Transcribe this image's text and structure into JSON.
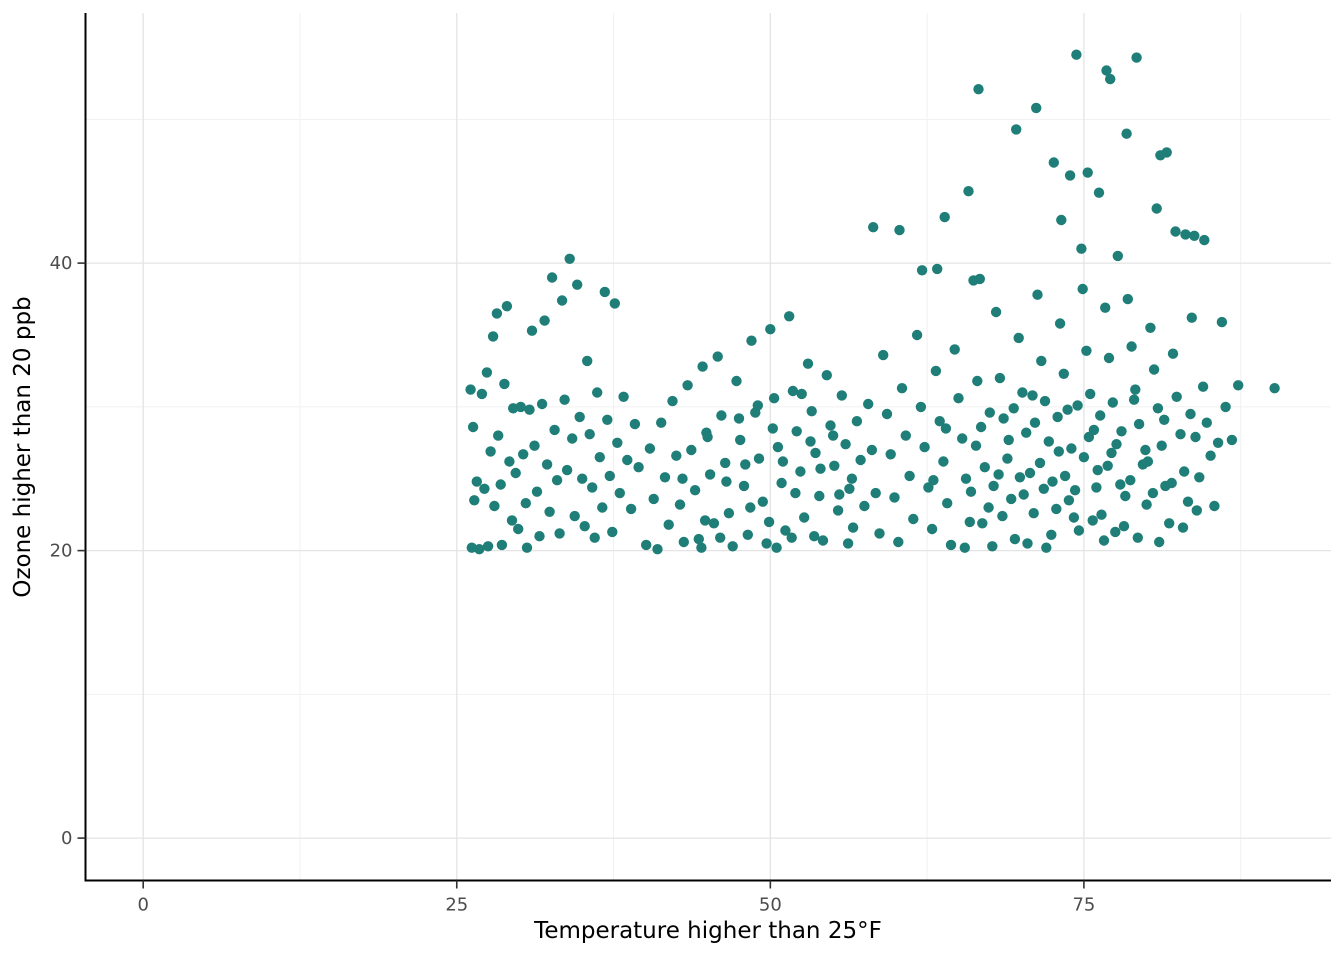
{
  "chart_data": {
    "type": "scatter",
    "title": "",
    "xlabel": "Temperature higher than 25°F",
    "ylabel": "Ozone higher than 20 ppb",
    "xlim": [
      -4.6,
      94.7
    ],
    "ylim": [
      -2.95,
      57.4
    ],
    "x_major_ticks": [
      0,
      25,
      50,
      75
    ],
    "y_major_ticks": [
      0,
      20,
      40
    ],
    "x_minor_gridlines": [
      12.5,
      37.5,
      62.5,
      87.5
    ],
    "y_minor_gridlines": [
      10,
      30,
      50
    ],
    "grid": true,
    "legend_position": "none",
    "point_color": "#1f7e78",
    "major_grid_color": "#e4e4e4",
    "minor_grid_color": "#f1f1f1",
    "axis_line_color": "#000000",
    "points": [
      [
        26.1,
        31.2
      ],
      [
        26.3,
        28.6
      ],
      [
        26.4,
        23.5
      ],
      [
        26.2,
        20.2
      ],
      [
        26.6,
        24.8
      ],
      [
        26.8,
        20.1
      ],
      [
        27.0,
        30.9
      ],
      [
        27.2,
        24.3
      ],
      [
        27.4,
        32.4
      ],
      [
        27.5,
        20.3
      ],
      [
        27.7,
        26.9
      ],
      [
        27.9,
        34.9
      ],
      [
        28.0,
        23.1
      ],
      [
        28.2,
        36.5
      ],
      [
        28.3,
        28.0
      ],
      [
        28.5,
        24.6
      ],
      [
        28.6,
        20.4
      ],
      [
        28.8,
        31.6
      ],
      [
        29.0,
        37.0
      ],
      [
        29.2,
        26.2
      ],
      [
        29.4,
        22.1
      ],
      [
        29.5,
        29.9
      ],
      [
        29.7,
        25.4
      ],
      [
        29.9,
        21.5
      ],
      [
        30.1,
        30.0
      ],
      [
        30.3,
        26.7
      ],
      [
        30.5,
        23.3
      ],
      [
        30.6,
        20.2
      ],
      [
        30.8,
        29.8
      ],
      [
        31.0,
        35.3
      ],
      [
        31.2,
        27.3
      ],
      [
        31.4,
        24.1
      ],
      [
        31.6,
        21.0
      ],
      [
        31.8,
        30.2
      ],
      [
        32.0,
        36.0
      ],
      [
        32.2,
        26.0
      ],
      [
        32.4,
        22.7
      ],
      [
        32.6,
        39.0
      ],
      [
        32.8,
        28.4
      ],
      [
        33.0,
        24.9
      ],
      [
        33.2,
        21.2
      ],
      [
        33.4,
        37.4
      ],
      [
        33.6,
        30.5
      ],
      [
        33.8,
        25.6
      ],
      [
        34.0,
        40.3
      ],
      [
        34.2,
        27.8
      ],
      [
        34.4,
        22.4
      ],
      [
        34.6,
        38.5
      ],
      [
        34.8,
        29.3
      ],
      [
        35.0,
        25.0
      ],
      [
        35.2,
        21.7
      ],
      [
        35.4,
        33.2
      ],
      [
        35.6,
        28.1
      ],
      [
        35.8,
        24.4
      ],
      [
        36.0,
        20.9
      ],
      [
        36.2,
        31.0
      ],
      [
        36.4,
        26.5
      ],
      [
        36.6,
        23.0
      ],
      [
        36.8,
        38.0
      ],
      [
        37.0,
        29.1
      ],
      [
        37.2,
        25.2
      ],
      [
        37.4,
        21.3
      ],
      [
        37.6,
        37.2
      ],
      [
        37.8,
        27.5
      ],
      [
        38.0,
        24.0
      ],
      [
        38.3,
        30.7
      ],
      [
        38.6,
        26.3
      ],
      [
        38.9,
        22.9
      ],
      [
        39.2,
        28.8
      ],
      [
        39.5,
        25.8
      ],
      [
        40.1,
        20.4
      ],
      [
        40.4,
        27.1
      ],
      [
        40.7,
        23.6
      ],
      [
        41.0,
        20.1
      ],
      [
        41.3,
        28.9
      ],
      [
        41.6,
        25.1
      ],
      [
        41.9,
        21.8
      ],
      [
        42.2,
        30.4
      ],
      [
        42.5,
        26.6
      ],
      [
        42.8,
        23.2
      ],
      [
        43.1,
        20.6
      ],
      [
        43.4,
        31.5
      ],
      [
        43.7,
        27.0
      ],
      [
        44.0,
        24.2
      ],
      [
        44.3,
        20.8
      ],
      [
        44.6,
        32.8
      ],
      [
        44.9,
        28.2
      ],
      [
        45.2,
        25.3
      ],
      [
        45.5,
        21.9
      ],
      [
        45.8,
        33.5
      ],
      [
        46.1,
        29.4
      ],
      [
        46.4,
        26.1
      ],
      [
        46.7,
        22.6
      ],
      [
        47.0,
        20.3
      ],
      [
        47.3,
        31.8
      ],
      [
        47.6,
        27.7
      ],
      [
        47.9,
        24.5
      ],
      [
        48.2,
        21.1
      ],
      [
        48.5,
        34.6
      ],
      [
        48.8,
        29.6
      ],
      [
        49.1,
        26.4
      ],
      [
        49.4,
        23.4
      ],
      [
        49.7,
        20.5
      ],
      [
        50.0,
        35.4
      ],
      [
        50.3,
        30.6
      ],
      [
        50.6,
        27.2
      ],
      [
        50.9,
        24.7
      ],
      [
        51.2,
        21.4
      ],
      [
        51.5,
        36.3
      ],
      [
        51.8,
        31.1
      ],
      [
        52.1,
        28.3
      ],
      [
        52.4,
        25.5
      ],
      [
        52.7,
        22.3
      ],
      [
        53.0,
        33.0
      ],
      [
        53.3,
        29.7
      ],
      [
        53.6,
        26.8
      ],
      [
        53.9,
        23.8
      ],
      [
        54.2,
        20.7
      ],
      [
        54.5,
        32.2
      ],
      [
        54.8,
        28.7
      ],
      [
        55.1,
        25.9
      ],
      [
        55.4,
        22.8
      ],
      [
        55.7,
        30.8
      ],
      [
        56.0,
        27.4
      ],
      [
        56.3,
        24.3
      ],
      [
        56.6,
        21.6
      ],
      [
        56.9,
        29.0
      ],
      [
        44.5,
        20.2
      ],
      [
        46.0,
        20.9
      ],
      [
        48.0,
        26.0
      ],
      [
        49.0,
        30.1
      ],
      [
        50.5,
        20.2
      ],
      [
        52.0,
        24.0
      ],
      [
        53.5,
        21.0
      ],
      [
        55.0,
        28.0
      ],
      [
        56.5,
        25.0
      ],
      [
        45.0,
        27.9
      ],
      [
        47.5,
        29.2
      ],
      [
        49.9,
        22.0
      ],
      [
        51.0,
        26.2
      ],
      [
        52.5,
        30.9
      ],
      [
        54.0,
        25.7
      ],
      [
        55.5,
        23.9
      ],
      [
        56.2,
        20.5
      ],
      [
        43.0,
        25.0
      ],
      [
        44.8,
        22.1
      ],
      [
        46.5,
        24.8
      ],
      [
        48.4,
        23.0
      ],
      [
        50.2,
        28.5
      ],
      [
        51.7,
        20.9
      ],
      [
        53.2,
        27.6
      ],
      [
        57.2,
        26.3
      ],
      [
        57.5,
        23.1
      ],
      [
        57.8,
        30.2
      ],
      [
        58.1,
        27.0
      ],
      [
        58.4,
        24.0
      ],
      [
        58.7,
        21.2
      ],
      [
        59.0,
        33.6
      ],
      [
        59.3,
        29.5
      ],
      [
        59.6,
        26.7
      ],
      [
        59.9,
        23.7
      ],
      [
        60.2,
        20.6
      ],
      [
        60.5,
        31.3
      ],
      [
        60.8,
        28.0
      ],
      [
        61.1,
        25.2
      ],
      [
        61.4,
        22.2
      ],
      [
        61.7,
        35.0
      ],
      [
        62.0,
        30.0
      ],
      [
        62.3,
        27.2
      ],
      [
        62.6,
        24.4
      ],
      [
        62.9,
        21.5
      ],
      [
        63.2,
        32.5
      ],
      [
        63.5,
        29.0
      ],
      [
        63.8,
        26.2
      ],
      [
        64.1,
        23.3
      ],
      [
        64.4,
        20.4
      ],
      [
        64.7,
        34.0
      ],
      [
        65.0,
        30.6
      ],
      [
        65.3,
        27.8
      ],
      [
        65.6,
        25.0
      ],
      [
        65.9,
        22.0
      ],
      [
        66.2,
        38.8
      ],
      [
        66.5,
        31.8
      ],
      [
        66.8,
        28.6
      ],
      [
        67.1,
        25.8
      ],
      [
        67.4,
        23.0
      ],
      [
        67.7,
        20.3
      ],
      [
        68.0,
        36.6
      ],
      [
        68.3,
        32.0
      ],
      [
        68.6,
        29.2
      ],
      [
        68.9,
        26.4
      ],
      [
        69.2,
        23.6
      ],
      [
        69.5,
        20.8
      ],
      [
        69.8,
        34.8
      ],
      [
        70.1,
        31.0
      ],
      [
        70.4,
        28.2
      ],
      [
        70.7,
        25.4
      ],
      [
        71.0,
        22.6
      ],
      [
        71.3,
        37.8
      ],
      [
        71.6,
        33.2
      ],
      [
        71.9,
        30.4
      ],
      [
        72.2,
        27.6
      ],
      [
        72.5,
        24.8
      ],
      [
        72.8,
        22.9
      ],
      [
        73.1,
        35.8
      ],
      [
        73.4,
        32.3
      ],
      [
        73.7,
        29.8
      ],
      [
        74.0,
        27.1
      ],
      [
        74.3,
        24.2
      ],
      [
        74.6,
        21.4
      ],
      [
        74.9,
        38.2
      ],
      [
        75.2,
        33.9
      ],
      [
        75.5,
        30.9
      ],
      [
        75.8,
        28.4
      ],
      [
        76.1,
        25.6
      ],
      [
        76.4,
        22.5
      ],
      [
        76.7,
        36.9
      ],
      [
        77.0,
        33.4
      ],
      [
        77.3,
        30.3
      ],
      [
        77.6,
        27.4
      ],
      [
        77.9,
        24.6
      ],
      [
        78.2,
        21.7
      ],
      [
        78.5,
        37.5
      ],
      [
        78.8,
        34.2
      ],
      [
        79.1,
        31.2
      ],
      [
        79.4,
        28.8
      ],
      [
        79.7,
        26.0
      ],
      [
        80.0,
        23.2
      ],
      [
        80.3,
        35.5
      ],
      [
        80.6,
        32.6
      ],
      [
        80.9,
        29.9
      ],
      [
        81.2,
        27.3
      ],
      [
        81.5,
        24.5
      ],
      [
        81.8,
        21.9
      ],
      [
        82.1,
        33.7
      ],
      [
        82.4,
        30.7
      ],
      [
        82.7,
        28.1
      ],
      [
        83.0,
        25.5
      ],
      [
        83.3,
        23.4
      ],
      [
        83.6,
        36.2
      ],
      [
        83.9,
        27.9
      ],
      [
        84.2,
        25.1
      ],
      [
        84.5,
        31.4
      ],
      [
        84.8,
        28.9
      ],
      [
        85.1,
        26.6
      ],
      [
        85.4,
        23.1
      ],
      [
        85.7,
        27.5
      ],
      [
        63.0,
        24.9
      ],
      [
        64.0,
        28.5
      ],
      [
        65.5,
        20.2
      ],
      [
        66.0,
        24.1
      ],
      [
        66.9,
        21.9
      ],
      [
        67.5,
        29.6
      ],
      [
        68.5,
        22.4
      ],
      [
        69.0,
        27.7
      ],
      [
        69.9,
        25.1
      ],
      [
        70.5,
        20.5
      ],
      [
        71.1,
        28.9
      ],
      [
        71.8,
        24.3
      ],
      [
        72.4,
        21.1
      ],
      [
        73.0,
        26.9
      ],
      [
        73.8,
        23.5
      ],
      [
        74.5,
        30.1
      ],
      [
        75.0,
        26.5
      ],
      [
        75.7,
        22.1
      ],
      [
        76.3,
        29.4
      ],
      [
        76.9,
        25.9
      ],
      [
        77.5,
        21.3
      ],
      [
        78.0,
        28.3
      ],
      [
        78.7,
        24.9
      ],
      [
        79.3,
        20.9
      ],
      [
        79.9,
        27.0
      ],
      [
        80.5,
        24.0
      ],
      [
        81.0,
        20.6
      ],
      [
        68.2,
        25.3
      ],
      [
        69.4,
        29.9
      ],
      [
        70.2,
        23.9
      ],
      [
        71.5,
        26.1
      ],
      [
        72.0,
        20.2
      ],
      [
        72.9,
        29.3
      ],
      [
        73.5,
        25.2
      ],
      [
        74.2,
        22.3
      ],
      [
        75.4,
        27.9
      ],
      [
        76.0,
        24.4
      ],
      [
        76.6,
        20.7
      ],
      [
        77.2,
        26.8
      ],
      [
        78.3,
        23.8
      ],
      [
        79.0,
        30.5
      ],
      [
        80.1,
        26.2
      ],
      [
        81.4,
        29.1
      ],
      [
        82.0,
        24.7
      ],
      [
        82.9,
        21.6
      ],
      [
        83.5,
        29.5
      ],
      [
        84.0,
        22.8
      ],
      [
        66.4,
        27.3
      ],
      [
        67.8,
        24.5
      ],
      [
        70.9,
        30.8
      ],
      [
        58.2,
        42.5
      ],
      [
        60.3,
        42.3
      ],
      [
        63.3,
        39.6
      ],
      [
        63.9,
        43.2
      ],
      [
        65.8,
        45.0
      ],
      [
        66.6,
        52.1
      ],
      [
        69.6,
        49.3
      ],
      [
        71.2,
        50.8
      ],
      [
        72.6,
        47.0
      ],
      [
        73.2,
        43.0
      ],
      [
        73.9,
        46.1
      ],
      [
        74.4,
        54.5
      ],
      [
        74.8,
        41.0
      ],
      [
        75.3,
        46.3
      ],
      [
        76.2,
        44.9
      ],
      [
        76.8,
        53.4
      ],
      [
        77.1,
        52.8
      ],
      [
        77.7,
        40.5
      ],
      [
        78.4,
        49.0
      ],
      [
        79.2,
        54.3
      ],
      [
        80.8,
        43.8
      ],
      [
        81.1,
        47.5
      ],
      [
        81.6,
        47.7
      ],
      [
        82.3,
        42.2
      ],
      [
        83.1,
        42.0
      ],
      [
        83.8,
        41.9
      ],
      [
        84.6,
        41.6
      ],
      [
        66.7,
        38.9
      ],
      [
        62.1,
        39.5
      ],
      [
        86.0,
        35.9
      ],
      [
        86.3,
        30.0
      ],
      [
        86.8,
        27.7
      ],
      [
        87.3,
        31.5
      ],
      [
        90.2,
        31.3
      ]
    ]
  }
}
